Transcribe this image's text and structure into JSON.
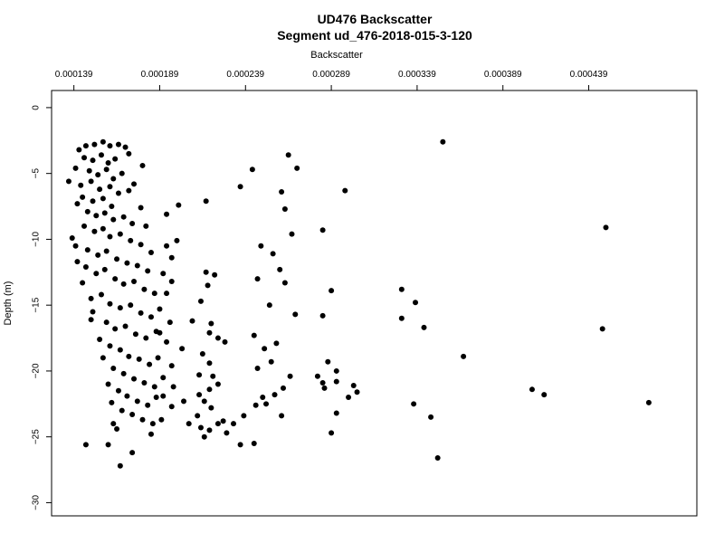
{
  "chart_data": {
    "type": "scatter",
    "title": "UD476 Backscatter",
    "subtitle": "Segment ud_476-2018-015-3-120",
    "xlabel": "Backscatter",
    "ylabel": "Depth (m)",
    "x_axis_position": "top",
    "xlim": [
      0.000126,
      0.000502
    ],
    "ylim": [
      -31.0,
      1.3
    ],
    "x_ticks": [
      0.000139,
      0.000189,
      0.000239,
      0.000289,
      0.000339,
      0.000389,
      0.000439
    ],
    "x_tick_labels": [
      "0.000139",
      "0.000189",
      "0.000239",
      "0.000289",
      "0.000339",
      "0.000389",
      "0.000439"
    ],
    "y_ticks": [
      0,
      -5,
      -10,
      -15,
      -20,
      -25,
      -30
    ],
    "y_tick_labels": [
      "0",
      "−5",
      "−10",
      "−15",
      "−20",
      "−25",
      "−30"
    ],
    "grid": false,
    "legend": "none",
    "marker_color": "#000000",
    "points": [
      [
        0.000354,
        -2.6
      ],
      [
        0.000449,
        -9.1
      ],
      [
        0.000474,
        -22.4
      ],
      [
        0.000447,
        -16.8
      ],
      [
        0.000406,
        -21.4
      ],
      [
        0.000413,
        -21.8
      ],
      [
        0.000366,
        -18.9
      ],
      [
        0.000351,
        -26.6
      ],
      [
        0.00033,
        -13.8
      ],
      [
        0.000338,
        -14.8
      ],
      [
        0.00033,
        -16.0
      ],
      [
        0.000343,
        -16.7
      ],
      [
        0.000337,
        -22.5
      ],
      [
        0.000347,
        -23.5
      ],
      [
        0.000297,
        -6.3
      ],
      [
        0.000284,
        -9.3
      ],
      [
        0.000289,
        -13.9
      ],
      [
        0.000284,
        -15.8
      ],
      [
        0.000287,
        -19.3
      ],
      [
        0.000292,
        -20.0
      ],
      [
        0.000281,
        -20.4
      ],
      [
        0.000284,
        -20.9
      ],
      [
        0.000285,
        -21.3
      ],
      [
        0.000292,
        -20.8
      ],
      [
        0.000302,
        -21.1
      ],
      [
        0.000304,
        -21.6
      ],
      [
        0.000299,
        -22.0
      ],
      [
        0.000292,
        -23.2
      ],
      [
        0.000289,
        -24.7
      ],
      [
        0.000264,
        -3.6
      ],
      [
        0.00026,
        -6.4
      ],
      [
        0.000269,
        -4.6
      ],
      [
        0.000243,
        -4.7
      ],
      [
        0.000236,
        -6.0
      ],
      [
        0.000262,
        -7.7
      ],
      [
        0.000266,
        -9.6
      ],
      [
        0.000248,
        -10.5
      ],
      [
        0.000255,
        -11.1
      ],
      [
        0.000259,
        -12.3
      ],
      [
        0.000262,
        -13.3
      ],
      [
        0.000246,
        -13.0
      ],
      [
        0.000253,
        -15.0
      ],
      [
        0.000268,
        -15.7
      ],
      [
        0.000244,
        -17.3
      ],
      [
        0.00025,
        -18.3
      ],
      [
        0.000257,
        -17.9
      ],
      [
        0.000254,
        -19.3
      ],
      [
        0.000246,
        -19.8
      ],
      [
        0.000265,
        -20.4
      ],
      [
        0.000261,
        -21.3
      ],
      [
        0.000256,
        -21.8
      ],
      [
        0.000249,
        -22.0
      ],
      [
        0.000251,
        -22.5
      ],
      [
        0.000245,
        -22.6
      ],
      [
        0.000238,
        -23.4
      ],
      [
        0.000232,
        -24.0
      ],
      [
        0.000228,
        -24.7
      ],
      [
        0.000244,
        -25.5
      ],
      [
        0.000236,
        -25.6
      ],
      [
        0.00026,
        -23.4
      ],
      [
        0.000216,
        -7.1
      ],
      [
        0.000216,
        -12.5
      ],
      [
        0.000221,
        -12.7
      ],
      [
        0.000217,
        -13.5
      ],
      [
        0.000213,
        -14.7
      ],
      [
        0.000219,
        -16.4
      ],
      [
        0.000218,
        -17.1
      ],
      [
        0.000223,
        -17.5
      ],
      [
        0.000227,
        -17.8
      ],
      [
        0.000214,
        -18.7
      ],
      [
        0.000218,
        -19.4
      ],
      [
        0.000212,
        -20.3
      ],
      [
        0.00022,
        -20.4
      ],
      [
        0.000223,
        -21.0
      ],
      [
        0.000218,
        -21.4
      ],
      [
        0.000212,
        -21.8
      ],
      [
        0.000215,
        -22.3
      ],
      [
        0.000219,
        -22.8
      ],
      [
        0.000211,
        -23.4
      ],
      [
        0.000226,
        -23.8
      ],
      [
        0.000218,
        -24.5
      ],
      [
        0.000215,
        -25.0
      ],
      [
        0.000223,
        -24.0
      ],
      [
        0.000213,
        -24.3
      ],
      [
        0.0002,
        -7.4
      ],
      [
        0.000193,
        -8.1
      ],
      [
        0.000199,
        -10.1
      ],
      [
        0.000193,
        -10.5
      ],
      [
        0.000196,
        -11.4
      ],
      [
        0.000191,
        -12.6
      ],
      [
        0.000196,
        -13.2
      ],
      [
        0.000193,
        -14.1
      ],
      [
        0.000189,
        -15.3
      ],
      [
        0.000195,
        -16.3
      ],
      [
        0.000189,
        -17.1
      ],
      [
        0.000193,
        -17.8
      ],
      [
        0.000196,
        -19.6
      ],
      [
        0.000191,
        -20.5
      ],
      [
        0.000197,
        -21.2
      ],
      [
        0.000191,
        -21.9
      ],
      [
        0.000196,
        -22.7
      ],
      [
        0.00019,
        -23.7
      ],
      [
        0.000203,
        -22.3
      ],
      [
        0.000206,
        -24.0
      ],
      [
        0.000208,
        -16.2
      ],
      [
        0.000202,
        -18.3
      ],
      [
        0.000142,
        -3.2
      ],
      [
        0.000146,
        -2.9
      ],
      [
        0.000151,
        -2.8
      ],
      [
        0.000156,
        -2.6
      ],
      [
        0.00016,
        -2.9
      ],
      [
        0.000165,
        -2.8
      ],
      [
        0.000169,
        -3.0
      ],
      [
        0.000145,
        -3.8
      ],
      [
        0.00015,
        -4.0
      ],
      [
        0.000155,
        -3.6
      ],
      [
        0.000159,
        -4.2
      ],
      [
        0.000163,
        -3.9
      ],
      [
        0.00014,
        -4.6
      ],
      [
        0.000148,
        -4.8
      ],
      [
        0.000153,
        -5.1
      ],
      [
        0.000158,
        -4.7
      ],
      [
        0.000162,
        -5.4
      ],
      [
        0.000167,
        -5.0
      ],
      [
        0.000136,
        -5.6
      ],
      [
        0.000143,
        -5.9
      ],
      [
        0.000149,
        -5.6
      ],
      [
        0.000154,
        -6.2
      ],
      [
        0.00016,
        -6.0
      ],
      [
        0.000165,
        -6.5
      ],
      [
        0.000171,
        -6.3
      ],
      [
        0.000144,
        -6.8
      ],
      [
        0.00015,
        -7.1
      ],
      [
        0.000156,
        -6.9
      ],
      [
        0.000161,
        -7.5
      ],
      [
        0.000147,
        -7.9
      ],
      [
        0.000152,
        -8.2
      ],
      [
        0.000157,
        -8.0
      ],
      [
        0.000162,
        -8.5
      ],
      [
        0.000168,
        -8.3
      ],
      [
        0.000173,
        -8.8
      ],
      [
        0.000145,
        -9.0
      ],
      [
        0.000151,
        -9.4
      ],
      [
        0.000156,
        -9.2
      ],
      [
        0.00016,
        -9.8
      ],
      [
        0.000166,
        -9.6
      ],
      [
        0.000172,
        -10.1
      ],
      [
        0.000178,
        -10.4
      ],
      [
        0.00014,
        -10.5
      ],
      [
        0.000147,
        -10.8
      ],
      [
        0.000153,
        -11.2
      ],
      [
        0.000158,
        -10.9
      ],
      [
        0.000164,
        -11.5
      ],
      [
        0.00017,
        -11.8
      ],
      [
        0.000176,
        -12.0
      ],
      [
        0.000182,
        -12.4
      ],
      [
        0.000146,
        -12.1
      ],
      [
        0.000152,
        -12.6
      ],
      [
        0.000157,
        -12.3
      ],
      [
        0.000163,
        -13.0
      ],
      [
        0.000168,
        -13.4
      ],
      [
        0.000174,
        -13.2
      ],
      [
        0.00018,
        -13.8
      ],
      [
        0.000186,
        -14.1
      ],
      [
        0.000149,
        -14.5
      ],
      [
        0.000155,
        -14.2
      ],
      [
        0.00016,
        -14.9
      ],
      [
        0.000166,
        -15.2
      ],
      [
        0.000172,
        -15.0
      ],
      [
        0.000178,
        -15.6
      ],
      [
        0.000184,
        -15.9
      ],
      [
        0.000158,
        -16.3
      ],
      [
        0.000163,
        -16.8
      ],
      [
        0.000169,
        -16.6
      ],
      [
        0.000175,
        -17.2
      ],
      [
        0.000181,
        -17.5
      ],
      [
        0.000187,
        -17.0
      ],
      [
        0.00016,
        -18.1
      ],
      [
        0.000166,
        -18.4
      ],
      [
        0.000171,
        -18.9
      ],
      [
        0.000177,
        -19.1
      ],
      [
        0.000183,
        -19.5
      ],
      [
        0.000162,
        -19.8
      ],
      [
        0.000168,
        -20.2
      ],
      [
        0.000174,
        -20.6
      ],
      [
        0.00018,
        -20.9
      ],
      [
        0.000186,
        -21.2
      ],
      [
        0.000165,
        -21.5
      ],
      [
        0.00017,
        -21.9
      ],
      [
        0.000176,
        -22.3
      ],
      [
        0.000182,
        -22.6
      ],
      [
        0.000167,
        -23.0
      ],
      [
        0.000173,
        -23.3
      ],
      [
        0.000179,
        -23.7
      ],
      [
        0.000185,
        -24.0
      ],
      [
        0.000162,
        -24.0
      ],
      [
        0.000159,
        -25.6
      ],
      [
        0.000146,
        -25.6
      ],
      [
        0.000173,
        -26.2
      ],
      [
        0.000166,
        -27.2
      ],
      [
        0.000141,
        -7.3
      ],
      [
        0.000138,
        -9.9
      ],
      [
        0.000141,
        -11.7
      ],
      [
        0.000144,
        -13.3
      ],
      [
        0.000149,
        -16.1
      ],
      [
        0.000154,
        -17.6
      ],
      [
        0.000156,
        -19.0
      ],
      [
        0.000159,
        -21.0
      ],
      [
        0.000161,
        -22.4
      ],
      [
        0.000164,
        -24.4
      ],
      [
        0.000178,
        -7.6
      ],
      [
        0.000181,
        -9.0
      ],
      [
        0.000174,
        -5.8
      ],
      [
        0.000179,
        -4.4
      ],
      [
        0.000171,
        -3.5
      ],
      [
        0.000184,
        -11.0
      ],
      [
        0.000188,
        -19.0
      ],
      [
        0.000187,
        -22.0
      ],
      [
        0.000184,
        -24.8
      ],
      [
        0.00015,
        -15.5
      ]
    ]
  }
}
